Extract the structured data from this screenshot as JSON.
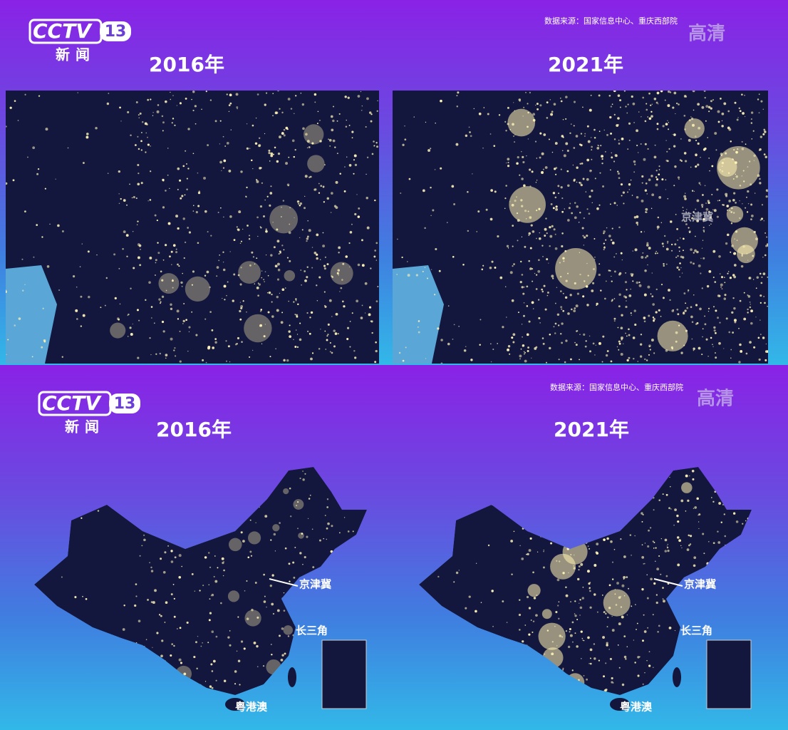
{
  "panels": [
    {
      "logo": {
        "brand": "CCTV",
        "channel": "13",
        "name": "新闻"
      },
      "source": "数据来源：国家信息中心、重庆西部院",
      "hd": "高清",
      "maps": [
        {
          "year": "2016年"
        },
        {
          "year": "2021年",
          "labels": [
            "京津冀"
          ]
        }
      ]
    },
    {
      "logo": {
        "brand": "CCTV",
        "channel": "13",
        "name": "新闻"
      },
      "source": "数据来源：国家信息中心、重庆西部院",
      "hd": "高清",
      "maps": [
        {
          "year": "2016年",
          "labels": [
            "京津冀",
            "长三角",
            "粤港澳"
          ]
        },
        {
          "year": "2021年",
          "labels": [
            "京津冀",
            "长三角",
            "粤港澳"
          ]
        }
      ]
    }
  ]
}
